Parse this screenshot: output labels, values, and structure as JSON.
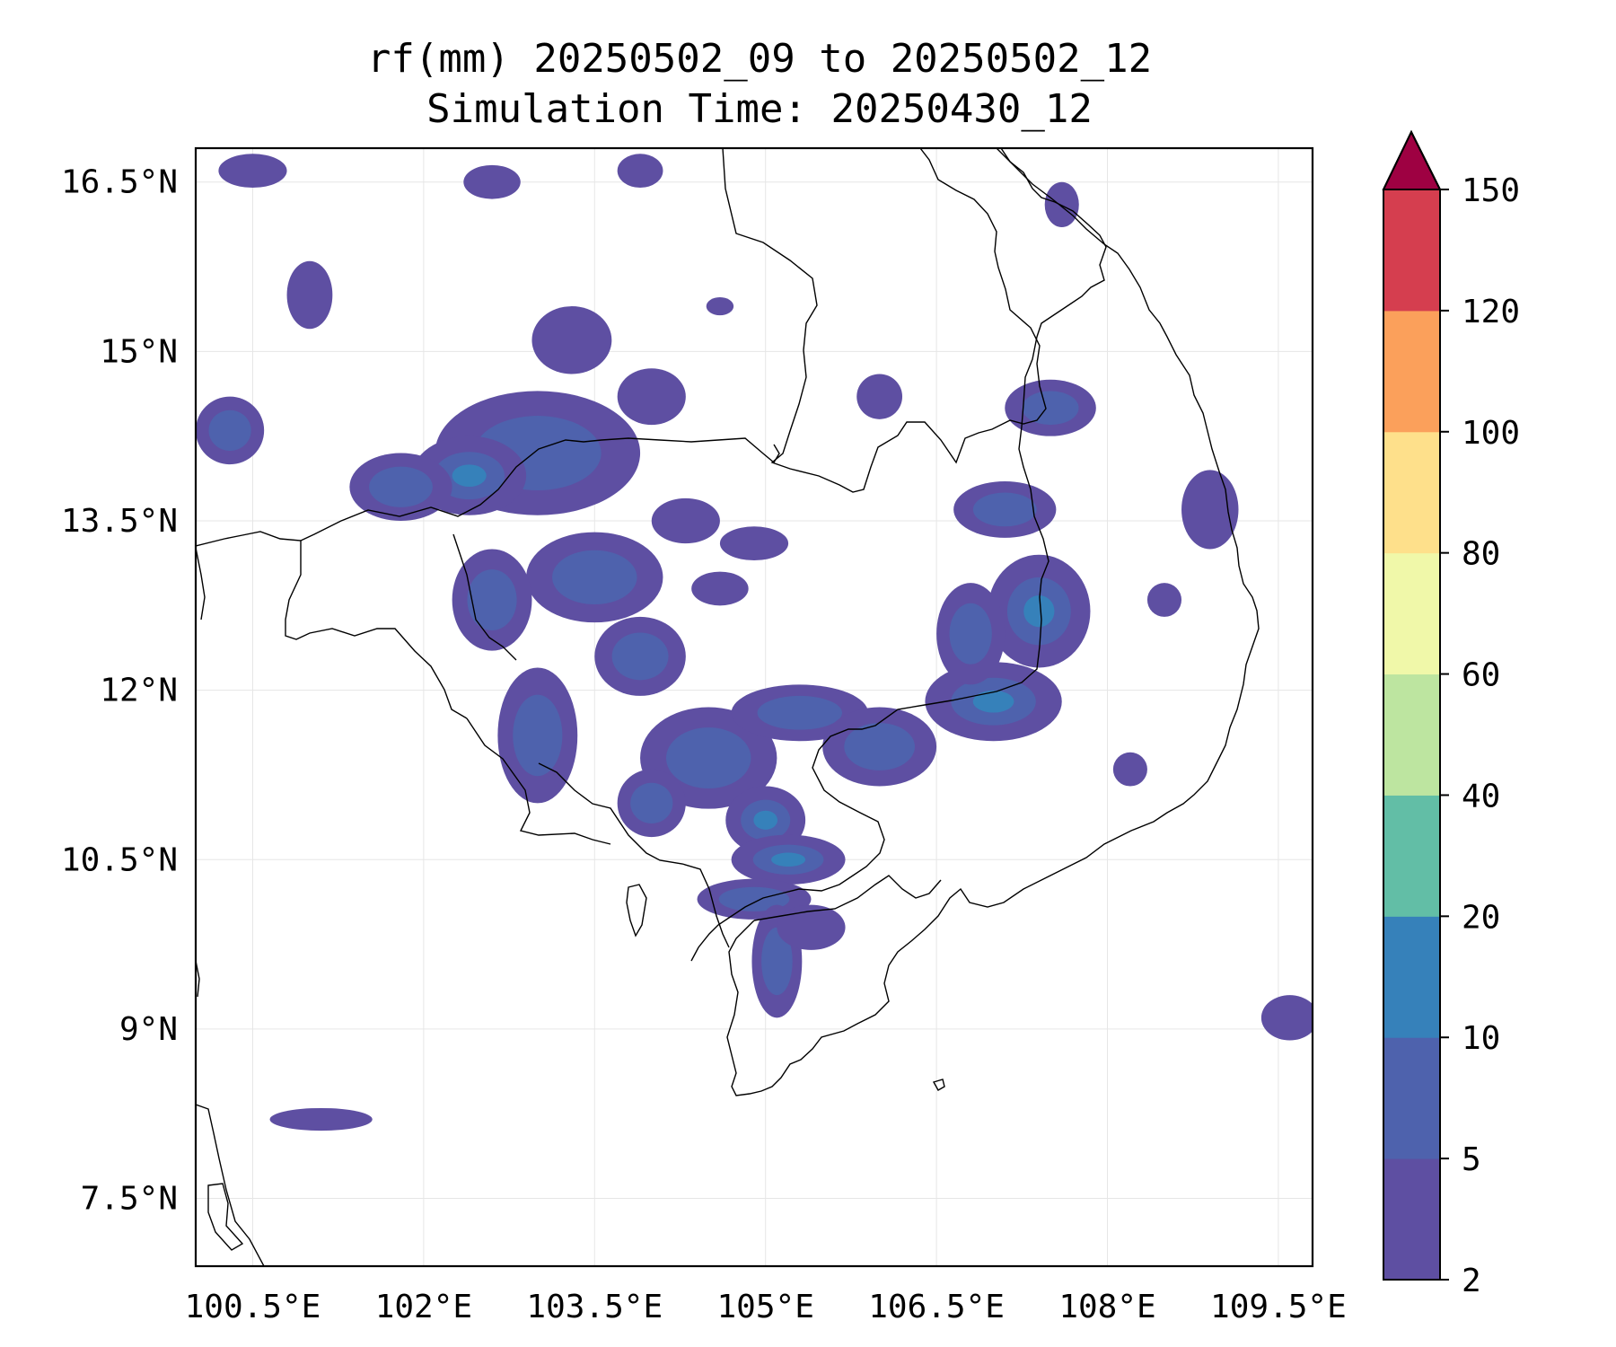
{
  "title": {
    "line1": "rf(mm) 20250502_09 to 20250502_12",
    "line2": "Simulation Time: 20250430_12"
  },
  "map": {
    "lon_range": [
      100.0,
      109.8
    ],
    "lat_range": [
      6.9,
      16.8
    ],
    "lon_ticks": [
      {
        "value": 100.5,
        "label": "100.5°E"
      },
      {
        "value": 102.0,
        "label": "102°E"
      },
      {
        "value": 103.5,
        "label": "103.5°E"
      },
      {
        "value": 105.0,
        "label": "105°E"
      },
      {
        "value": 106.5,
        "label": "106.5°E"
      },
      {
        "value": 108.0,
        "label": "108°E"
      },
      {
        "value": 109.5,
        "label": "109.5°E"
      }
    ],
    "lat_ticks": [
      {
        "value": 16.5,
        "label": "16.5°N"
      },
      {
        "value": 15.0,
        "label": "15°N"
      },
      {
        "value": 13.5,
        "label": "13.5°N"
      },
      {
        "value": 12.0,
        "label": "12°N"
      },
      {
        "value": 10.5,
        "label": "10.5°N"
      },
      {
        "value": 9.0,
        "label": "9°N"
      },
      {
        "value": 7.5,
        "label": "7.5°N"
      }
    ],
    "gridlines": true,
    "rain_patches": [
      {
        "lon": 103.0,
        "lat": 14.1,
        "rx": 0.9,
        "ry": 0.55,
        "level": 1
      },
      {
        "lon": 102.4,
        "lat": 13.9,
        "rx": 0.5,
        "ry": 0.35,
        "level": 2
      },
      {
        "lon": 101.8,
        "lat": 13.8,
        "rx": 0.45,
        "ry": 0.3,
        "level": 1
      },
      {
        "lon": 100.3,
        "lat": 14.3,
        "rx": 0.3,
        "ry": 0.3,
        "level": 1
      },
      {
        "lon": 101.0,
        "lat": 15.5,
        "rx": 0.2,
        "ry": 0.3,
        "level": 0
      },
      {
        "lon": 100.5,
        "lat": 16.6,
        "rx": 0.3,
        "ry": 0.15,
        "level": 0
      },
      {
        "lon": 103.3,
        "lat": 15.1,
        "rx": 0.35,
        "ry": 0.3,
        "level": 0
      },
      {
        "lon": 104.0,
        "lat": 14.6,
        "rx": 0.3,
        "ry": 0.25,
        "level": 0
      },
      {
        "lon": 103.5,
        "lat": 13.0,
        "rx": 0.6,
        "ry": 0.4,
        "level": 1
      },
      {
        "lon": 102.6,
        "lat": 12.8,
        "rx": 0.35,
        "ry": 0.45,
        "level": 1
      },
      {
        "lon": 103.0,
        "lat": 11.6,
        "rx": 0.35,
        "ry": 0.6,
        "level": 1
      },
      {
        "lon": 103.9,
        "lat": 12.3,
        "rx": 0.4,
        "ry": 0.35,
        "level": 1
      },
      {
        "lon": 104.5,
        "lat": 11.4,
        "rx": 0.6,
        "ry": 0.45,
        "level": 1
      },
      {
        "lon": 104.0,
        "lat": 11.0,
        "rx": 0.3,
        "ry": 0.3,
        "level": 1
      },
      {
        "lon": 105.0,
        "lat": 10.85,
        "rx": 0.35,
        "ry": 0.3,
        "level": 2
      },
      {
        "lon": 105.2,
        "lat": 10.5,
        "rx": 0.5,
        "ry": 0.22,
        "level": 2
      },
      {
        "lon": 104.9,
        "lat": 10.15,
        "rx": 0.5,
        "ry": 0.18,
        "level": 1
      },
      {
        "lon": 105.1,
        "lat": 9.6,
        "rx": 0.22,
        "ry": 0.5,
        "level": 1
      },
      {
        "lon": 105.4,
        "lat": 9.9,
        "rx": 0.3,
        "ry": 0.2,
        "level": 0
      },
      {
        "lon": 105.3,
        "lat": 11.8,
        "rx": 0.6,
        "ry": 0.25,
        "level": 1
      },
      {
        "lon": 106.0,
        "lat": 11.5,
        "rx": 0.5,
        "ry": 0.35,
        "level": 1
      },
      {
        "lon": 107.0,
        "lat": 11.9,
        "rx": 0.6,
        "ry": 0.35,
        "level": 2
      },
      {
        "lon": 107.4,
        "lat": 12.7,
        "rx": 0.45,
        "ry": 0.5,
        "level": 2
      },
      {
        "lon": 106.8,
        "lat": 12.5,
        "rx": 0.3,
        "ry": 0.45,
        "level": 1
      },
      {
        "lon": 107.1,
        "lat": 13.6,
        "rx": 0.45,
        "ry": 0.25,
        "level": 1
      },
      {
        "lon": 107.5,
        "lat": 14.5,
        "rx": 0.4,
        "ry": 0.25,
        "level": 1
      },
      {
        "lon": 104.3,
        "lat": 13.5,
        "rx": 0.3,
        "ry": 0.2,
        "level": 0
      },
      {
        "lon": 104.6,
        "lat": 12.9,
        "rx": 0.25,
        "ry": 0.15,
        "level": 0
      },
      {
        "lon": 104.9,
        "lat": 13.3,
        "rx": 0.3,
        "ry": 0.15,
        "level": 0
      },
      {
        "lon": 108.9,
        "lat": 13.6,
        "rx": 0.25,
        "ry": 0.35,
        "level": 0
      },
      {
        "lon": 108.5,
        "lat": 12.8,
        "rx": 0.15,
        "ry": 0.15,
        "level": 0
      },
      {
        "lon": 108.2,
        "lat": 11.3,
        "rx": 0.15,
        "ry": 0.15,
        "level": 0
      },
      {
        "lon": 109.6,
        "lat": 9.1,
        "rx": 0.25,
        "ry": 0.2,
        "level": 0
      },
      {
        "lon": 101.1,
        "lat": 8.2,
        "rx": 0.45,
        "ry": 0.1,
        "level": 0
      },
      {
        "lon": 107.6,
        "lat": 16.3,
        "rx": 0.15,
        "ry": 0.2,
        "level": 0
      },
      {
        "lon": 106.0,
        "lat": 14.6,
        "rx": 0.2,
        "ry": 0.2,
        "level": 0
      },
      {
        "lon": 104.6,
        "lat": 15.4,
        "rx": 0.12,
        "ry": 0.08,
        "level": 0
      },
      {
        "lon": 102.6,
        "lat": 16.5,
        "rx": 0.25,
        "ry": 0.15,
        "level": 0
      },
      {
        "lon": 103.9,
        "lat": 16.6,
        "rx": 0.2,
        "ry": 0.15,
        "level": 0
      }
    ]
  },
  "colorbar": {
    "bounds": [
      2,
      5,
      10,
      20,
      40,
      60,
      80,
      100,
      120,
      150
    ],
    "tick_labels": [
      "2",
      "5",
      "10",
      "20",
      "40",
      "60",
      "80",
      "100",
      "120",
      "150"
    ],
    "colors": [
      "#5e4fa2",
      "#4e62ad",
      "#3681ba",
      "#62bea6",
      "#bde5a0",
      "#f0f8a9",
      "#fee08b",
      "#fba05b",
      "#d53e4f"
    ],
    "extend_color": "#9e0142",
    "extend": "max"
  }
}
